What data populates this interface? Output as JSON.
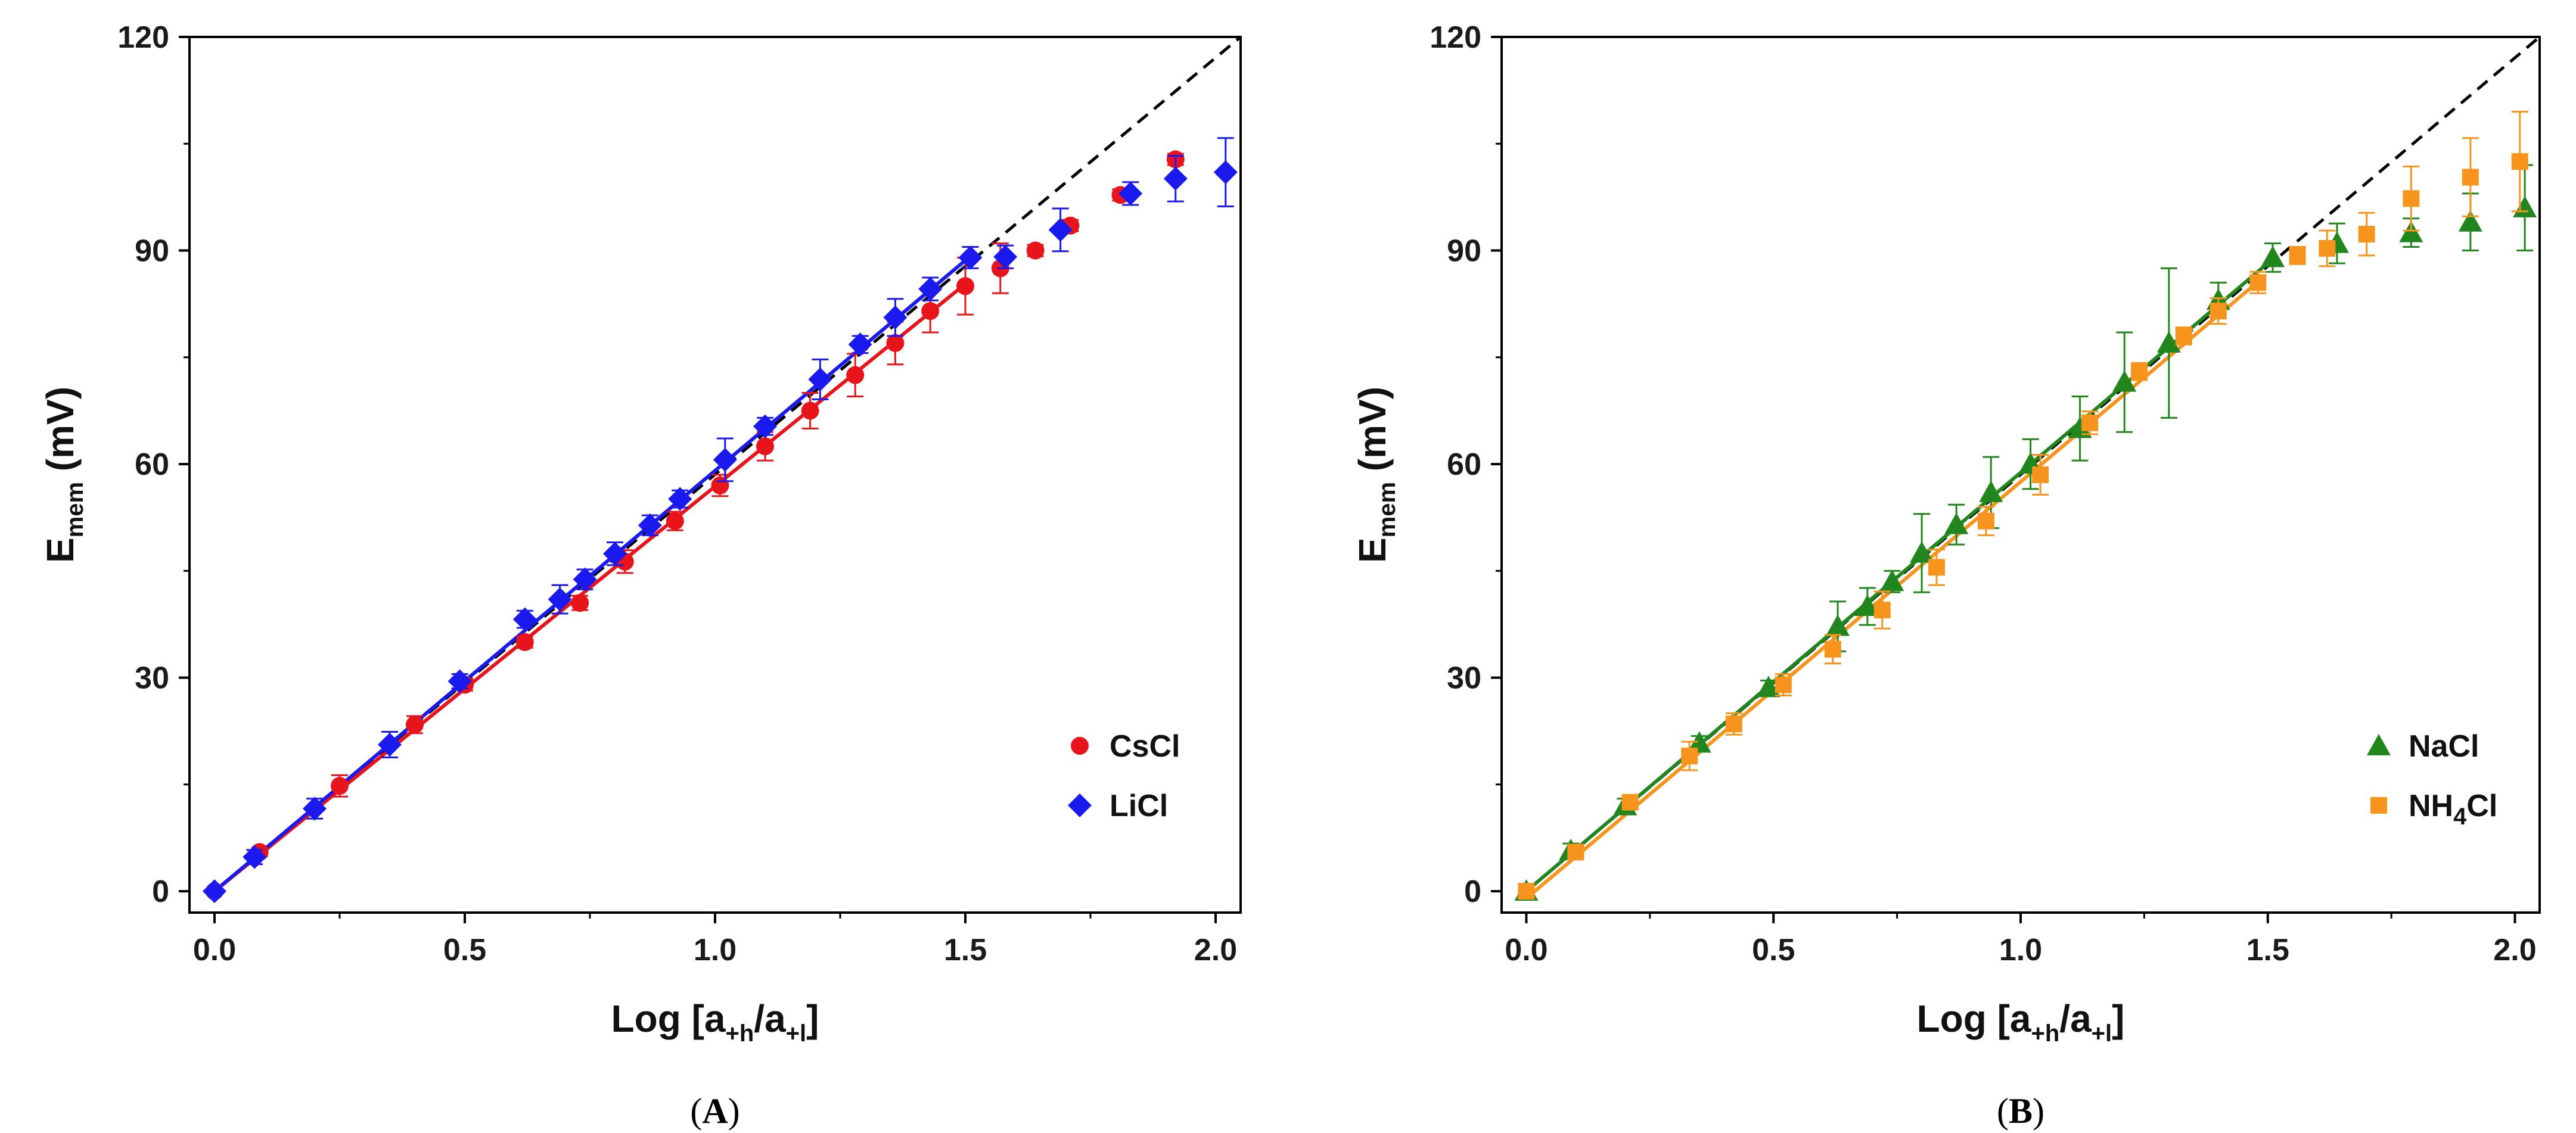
{
  "chart_data": [
    {
      "type": "scatter",
      "panel": "(A)",
      "xlabel": {
        "main": "Log [a",
        "sub1": "+h",
        "mid": "/a",
        "sub2": "+l",
        "end": "]"
      },
      "ylabel": {
        "main": "E",
        "sub": "mem",
        "end": " (mV)"
      },
      "xlim": [
        -0.05,
        2.05
      ],
      "ylim": [
        -3,
        120
      ],
      "xticks": [
        0.0,
        0.5,
        1.0,
        1.5,
        2.0
      ],
      "xtick_labels": [
        "0.0",
        "0.5",
        "1.0",
        "1.5",
        "2.0"
      ],
      "yticks": [
        0,
        30,
        60,
        90,
        120
      ],
      "ytick_labels": [
        "0",
        "30",
        "60",
        "90",
        "120"
      ],
      "reference_line": {
        "style": "dashed",
        "color": "#000000",
        "x": [
          0,
          2.05
        ],
        "y": [
          0,
          120
        ]
      },
      "legend_position": "bottom-right",
      "series": [
        {
          "name": "CsCl",
          "color": "#e8141c",
          "marker": "circle",
          "points": [
            {
              "x": 0.0,
              "y": 0.0,
              "err": 0
            },
            {
              "x": 0.09,
              "y": 5.5,
              "err": 0.6
            },
            {
              "x": 0.25,
              "y": 14.8,
              "err": 1.5
            },
            {
              "x": 0.4,
              "y": 23.4,
              "err": 1.2
            },
            {
              "x": 0.5,
              "y": 29.0,
              "err": 0.8
            },
            {
              "x": 0.62,
              "y": 35.0,
              "err": 0.8
            },
            {
              "x": 0.73,
              "y": 40.5,
              "err": 1.0
            },
            {
              "x": 0.82,
              "y": 46.3,
              "err": 1.6
            },
            {
              "x": 0.92,
              "y": 52.0,
              "err": 1.3
            },
            {
              "x": 1.01,
              "y": 57.0,
              "err": 1.5
            },
            {
              "x": 1.1,
              "y": 62.5,
              "err": 2.0
            },
            {
              "x": 1.19,
              "y": 67.5,
              "err": 2.5
            },
            {
              "x": 1.28,
              "y": 72.5,
              "err": 3.0
            },
            {
              "x": 1.36,
              "y": 77.0,
              "err": 3.0
            },
            {
              "x": 1.43,
              "y": 81.5,
              "err": 3.0
            },
            {
              "x": 1.5,
              "y": 85.0,
              "err": 4.0
            },
            {
              "x": 1.57,
              "y": 87.5,
              "err": 3.5
            },
            {
              "x": 1.64,
              "y": 90.0,
              "err": 0.8
            },
            {
              "x": 1.71,
              "y": 93.5,
              "err": 0.8
            },
            {
              "x": 1.81,
              "y": 97.8,
              "err": 0.8
            },
            {
              "x": 1.92,
              "y": 102.8,
              "err": 0.8
            }
          ],
          "fit": {
            "x": [
              0.0,
              1.5
            ],
            "y": [
              0.0,
              85.3
            ]
          }
        },
        {
          "name": "LiCl",
          "color": "#1a1aee",
          "marker": "diamond",
          "points": [
            {
              "x": 0.0,
              "y": 0.0,
              "err": 0
            },
            {
              "x": 0.08,
              "y": 4.8,
              "err": 1.0
            },
            {
              "x": 0.2,
              "y": 11.6,
              "err": 1.4
            },
            {
              "x": 0.35,
              "y": 20.6,
              "err": 1.8
            },
            {
              "x": 0.49,
              "y": 29.5,
              "err": 1.0
            },
            {
              "x": 0.62,
              "y": 38.2,
              "err": 1.2
            },
            {
              "x": 0.69,
              "y": 41.0,
              "err": 2.0
            },
            {
              "x": 0.74,
              "y": 43.8,
              "err": 1.4
            },
            {
              "x": 0.8,
              "y": 47.4,
              "err": 1.6
            },
            {
              "x": 0.87,
              "y": 51.4,
              "err": 1.4
            },
            {
              "x": 0.93,
              "y": 55.1,
              "err": 1.2
            },
            {
              "x": 1.02,
              "y": 60.6,
              "err": 3.0
            },
            {
              "x": 1.1,
              "y": 65.3,
              "err": 1.2
            },
            {
              "x": 1.21,
              "y": 71.9,
              "err": 2.8
            },
            {
              "x": 1.29,
              "y": 76.8,
              "err": 1.2
            },
            {
              "x": 1.36,
              "y": 80.6,
              "err": 2.6
            },
            {
              "x": 1.43,
              "y": 84.6,
              "err": 1.6
            },
            {
              "x": 1.51,
              "y": 89.0,
              "err": 1.5
            },
            {
              "x": 1.58,
              "y": 89.1,
              "err": 1.6
            },
            {
              "x": 1.69,
              "y": 92.9,
              "err": 3.0
            },
            {
              "x": 1.83,
              "y": 98.0,
              "err": 1.6
            },
            {
              "x": 1.92,
              "y": 100.1,
              "err": 3.2
            },
            {
              "x": 2.02,
              "y": 101.0,
              "err": 4.8
            }
          ],
          "fit": {
            "x": [
              0.0,
              1.51
            ],
            "y": [
              0.0,
              89.2
            ]
          }
        }
      ]
    },
    {
      "type": "scatter",
      "panel": "(B)",
      "xlabel": {
        "main": "Log [a",
        "sub1": "+h",
        "mid": "/a",
        "sub2": "+l",
        "end": "]"
      },
      "ylabel": {
        "main": "E",
        "sub": "mem",
        "end": " (mV)"
      },
      "xlim": [
        -0.05,
        2.05
      ],
      "ylim": [
        -3,
        120
      ],
      "xticks": [
        0.0,
        0.5,
        1.0,
        1.5,
        2.0
      ],
      "xtick_labels": [
        "0.0",
        "0.5",
        "1.0",
        "1.5",
        "2.0"
      ],
      "yticks": [
        0,
        30,
        60,
        90,
        120
      ],
      "ytick_labels": [
        "0",
        "30",
        "60",
        "90",
        "120"
      ],
      "reference_line": {
        "style": "dashed",
        "color": "#000000",
        "x": [
          0,
          2.05
        ],
        "y": [
          0,
          120
        ]
      },
      "legend_position": "bottom-right",
      "series": [
        {
          "name": "NaCl",
          "color": "#22861e",
          "marker": "triangle",
          "points": [
            {
              "x": 0.0,
              "y": 0.0,
              "err": 0
            },
            {
              "x": 0.09,
              "y": 5.7,
              "err": 1.0
            },
            {
              "x": 0.2,
              "y": 12.0,
              "err": 1.0
            },
            {
              "x": 0.35,
              "y": 20.8,
              "err": 1.0
            },
            {
              "x": 0.49,
              "y": 28.6,
              "err": 1.0
            },
            {
              "x": 0.63,
              "y": 37.2,
              "err": 3.5
            },
            {
              "x": 0.69,
              "y": 40.0,
              "err": 2.6
            },
            {
              "x": 0.74,
              "y": 43.5,
              "err": 1.5
            },
            {
              "x": 0.8,
              "y": 47.5,
              "err": 5.5
            },
            {
              "x": 0.87,
              "y": 51.5,
              "err": 2.8
            },
            {
              "x": 0.94,
              "y": 56.0,
              "err": 5.0
            },
            {
              "x": 1.02,
              "y": 60.0,
              "err": 3.5
            },
            {
              "x": 1.12,
              "y": 65.0,
              "err": 4.5
            },
            {
              "x": 1.21,
              "y": 71.5,
              "err": 7.0
            },
            {
              "x": 1.3,
              "y": 77.0,
              "err": 10.5
            },
            {
              "x": 1.4,
              "y": 83.0,
              "err": 2.5
            },
            {
              "x": 1.51,
              "y": 89.0,
              "err": 2.0
            },
            {
              "x": 1.64,
              "y": 91.0,
              "err": 2.8
            },
            {
              "x": 1.79,
              "y": 92.5,
              "err": 2.0
            },
            {
              "x": 1.91,
              "y": 94.0,
              "err": 4.0
            },
            {
              "x": 2.02,
              "y": 96.0,
              "err": 6.0
            }
          ],
          "fit": {
            "x": [
              0.0,
              1.51
            ],
            "y": [
              0.0,
              88.8
            ]
          }
        },
        {
          "name": "NH4Cl",
          "label_main": "NH",
          "label_sub": "4",
          "label_end": "Cl",
          "color": "#f7941d",
          "marker": "square",
          "points": [
            {
              "x": 0.0,
              "y": 0.0,
              "err": 0
            },
            {
              "x": 0.1,
              "y": 5.5,
              "err": 1.0
            },
            {
              "x": 0.21,
              "y": 12.5,
              "err": 0.8
            },
            {
              "x": 0.33,
              "y": 19.0,
              "err": 2.0
            },
            {
              "x": 0.42,
              "y": 23.5,
              "err": 1.5
            },
            {
              "x": 0.52,
              "y": 29.0,
              "err": 1.5
            },
            {
              "x": 0.62,
              "y": 34.0,
              "err": 2.0
            },
            {
              "x": 0.72,
              "y": 39.5,
              "err": 2.6
            },
            {
              "x": 0.83,
              "y": 45.5,
              "err": 2.5
            },
            {
              "x": 0.93,
              "y": 52.0,
              "err": 2.0
            },
            {
              "x": 1.04,
              "y": 58.5,
              "err": 2.8
            },
            {
              "x": 1.14,
              "y": 65.8,
              "err": 1.6
            },
            {
              "x": 1.24,
              "y": 73.0,
              "err": 1.2
            },
            {
              "x": 1.33,
              "y": 78.0,
              "err": 1.2
            },
            {
              "x": 1.4,
              "y": 81.5,
              "err": 1.8
            },
            {
              "x": 1.48,
              "y": 85.5,
              "err": 1.5
            },
            {
              "x": 1.56,
              "y": 89.3,
              "err": 1.2
            },
            {
              "x": 1.62,
              "y": 90.3,
              "err": 2.5
            },
            {
              "x": 1.7,
              "y": 92.3,
              "err": 3.0
            },
            {
              "x": 1.79,
              "y": 97.3,
              "err": 4.5
            },
            {
              "x": 1.91,
              "y": 100.3,
              "err": 5.5
            },
            {
              "x": 2.01,
              "y": 102.5,
              "err": 7.0
            }
          ],
          "fit": {
            "x": [
              0.0,
              1.48
            ],
            "y": [
              -1.0,
              85.6
            ]
          }
        }
      ]
    }
  ]
}
